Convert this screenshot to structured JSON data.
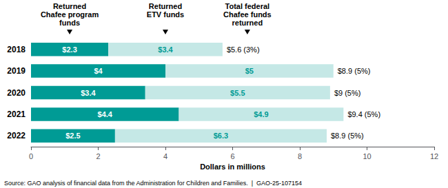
{
  "chart_data": {
    "type": "bar",
    "orientation": "horizontal",
    "stacked": true,
    "categories": [
      "2018",
      "2019",
      "2020",
      "2021",
      "2022"
    ],
    "series": [
      {
        "name": "Returned\nChafee program\nfunds",
        "color": "#009B95",
        "values": [
          2.3,
          4.0,
          3.4,
          4.4,
          2.5
        ],
        "value_labels": [
          "$2.3",
          "$4",
          "$3.4",
          "$4.4",
          "$2.5"
        ]
      },
      {
        "name": "Returned\nETV funds",
        "color": "#C5E8E6",
        "values": [
          3.4,
          5.0,
          5.5,
          4.9,
          6.3
        ],
        "value_labels": [
          "$3.4",
          "$5",
          "$5.5",
          "$4.9",
          "$6.3"
        ]
      }
    ],
    "total_labels": [
      "$5.6 (3%)",
      "$8.9 (5%)",
      "$9 (5%)",
      "$9.4 (5%)",
      "$8.9 (5%)"
    ],
    "data_labels": true,
    "xlabel": "Dollars in millions",
    "xlim": [
      0,
      12
    ],
    "xticks": [
      0,
      2,
      4,
      6,
      8,
      10,
      12
    ],
    "grid": false,
    "annotations": [
      "Total federal\nChafee funds\nreturned",
      "Source: GAO analysis of financial data from the Administration for Children and Families.  |  GAO-25-107154"
    ]
  }
}
